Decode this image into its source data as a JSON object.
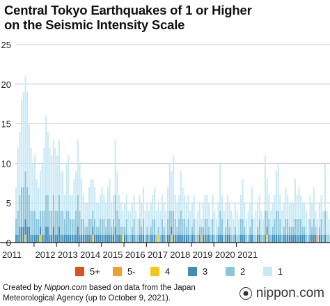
{
  "title_line1": "Central Tokyo Earthquakes of 1 or Higher",
  "title_line2": "on the Seismic Intensity Scale",
  "footer": {
    "prefix": "Created by ",
    "source_name": "Nippon.com",
    "suffix": " based on data from the Japan Meteorological Agency (up to October 9, 2021)."
  },
  "brand": {
    "name": "nippon",
    "dot": ".",
    "tld": "com"
  },
  "chart_data": {
    "type": "bar",
    "stacked": true,
    "ylim": [
      0,
      25
    ],
    "yticks": [
      0,
      5,
      10,
      15,
      20,
      25
    ],
    "x_labels": [
      "2011",
      "2012",
      "2013",
      "2014",
      "2015",
      "2016",
      "2017",
      "2018",
      "2019",
      "2020",
      "2021"
    ],
    "grid": true,
    "legend_position": "bottom",
    "legend": [
      {
        "name": "5+",
        "color": "#d9531e"
      },
      {
        "name": "5-",
        "color": "#f0a030"
      },
      {
        "name": "4",
        "color": "#f5c518"
      },
      {
        "name": "3",
        "color": "#3e8eb8"
      },
      {
        "name": "2",
        "color": "#8cc6dc"
      },
      {
        "name": "1",
        "color": "#c9e9f5"
      }
    ],
    "series_order": [
      "5+",
      "5-",
      "4",
      "3",
      "2",
      "1"
    ],
    "totals": [
      7,
      12,
      14,
      18,
      19,
      21,
      19,
      15,
      12,
      10,
      11,
      8,
      7,
      9,
      10,
      12,
      16,
      14,
      12,
      11,
      13,
      12,
      11,
      13,
      9,
      9,
      6,
      10,
      11,
      6,
      6,
      8,
      9,
      13,
      10,
      8,
      6,
      5,
      5,
      7,
      8,
      8,
      7,
      5,
      5,
      6,
      7,
      6,
      5,
      7,
      8,
      5,
      6,
      13,
      9,
      6,
      5,
      4,
      5,
      6,
      4,
      4,
      5,
      6,
      4,
      3,
      6,
      5,
      7,
      4,
      5,
      4,
      5,
      6,
      7,
      4,
      5,
      4,
      6,
      5,
      4,
      7,
      10,
      9,
      11,
      6,
      5,
      6,
      9,
      7,
      6,
      5,
      6,
      4,
      5,
      6,
      3,
      4,
      5,
      3,
      5,
      6,
      6,
      5,
      3,
      6,
      4,
      3,
      5,
      10,
      6,
      4,
      5,
      6,
      5,
      4,
      3,
      5,
      4,
      3,
      6,
      8,
      5,
      3,
      4,
      5,
      7,
      3,
      4,
      5,
      6,
      4,
      3,
      11,
      8,
      6,
      4,
      5,
      6,
      9,
      10,
      6,
      4,
      5,
      7,
      6,
      5,
      5,
      5,
      8,
      6,
      7,
      6,
      5,
      5,
      4,
      3,
      6,
      5,
      7,
      4,
      3,
      5,
      6,
      4,
      10,
      4,
      3
    ],
    "intensity_4_plus": [
      {
        "month_index": 5,
        "level": "4",
        "count": 1
      },
      {
        "month_index": 13,
        "level": "4",
        "count": 1
      },
      {
        "month_index": 41,
        "level": "5-",
        "count": 1
      },
      {
        "month_index": 57,
        "level": "4",
        "count": 1
      },
      {
        "month_index": 76,
        "level": "4",
        "count": 1
      },
      {
        "month_index": 83,
        "level": "4",
        "count": 1
      },
      {
        "month_index": 99,
        "level": "4",
        "count": 1
      },
      {
        "month_index": 134,
        "level": "4",
        "count": 1
      },
      {
        "month_index": 160,
        "level": "5+",
        "count": 1
      }
    ]
  }
}
